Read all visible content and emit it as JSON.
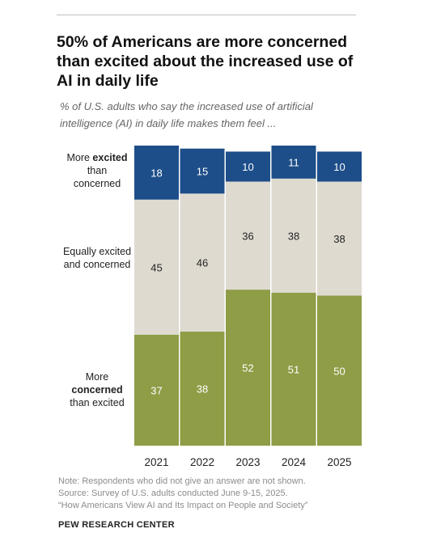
{
  "title": "50% of Americans are more concerned than excited about the increased use of AI in daily life",
  "subtitle": "% of U.S. adults who say the increased use of artificial intelligence (AI) in daily life makes them feel ...",
  "row_labels": {
    "excited": {
      "pre": "More ",
      "bold": "excited",
      "post": "than concerned"
    },
    "equal": {
      "text": "Equally excited and concerned"
    },
    "concerned": {
      "pre": "More",
      "bold": "concerned",
      "post": "than excited"
    }
  },
  "colors": {
    "excited": "#1d4e89",
    "equal": "#dedad0",
    "concerned": "#8e9d46",
    "label_on_dark": "#ffffff",
    "label_on_light": "#222222"
  },
  "chart_data": {
    "type": "bar",
    "stacked": true,
    "orientation": "vertical",
    "categories": [
      "2021",
      "2022",
      "2023",
      "2024",
      "2025"
    ],
    "series": [
      {
        "name": "More concerned than excited",
        "values": [
          37,
          38,
          52,
          51,
          50
        ]
      },
      {
        "name": "Equally excited and concerned",
        "values": [
          45,
          46,
          36,
          38,
          38
        ]
      },
      {
        "name": "More excited than concerned",
        "values": [
          18,
          15,
          10,
          11,
          10
        ]
      }
    ],
    "ylim": [
      0,
      100
    ],
    "grid": false,
    "legend": "left"
  },
  "notes": [
    "Note: Respondents who did not give an answer are not shown.",
    "Source: Survey of U.S. adults conducted June 9-15, 2025.",
    "“How Americans View AI and Its Impact on People and Society”"
  ],
  "source_brand": "PEW RESEARCH CENTER"
}
